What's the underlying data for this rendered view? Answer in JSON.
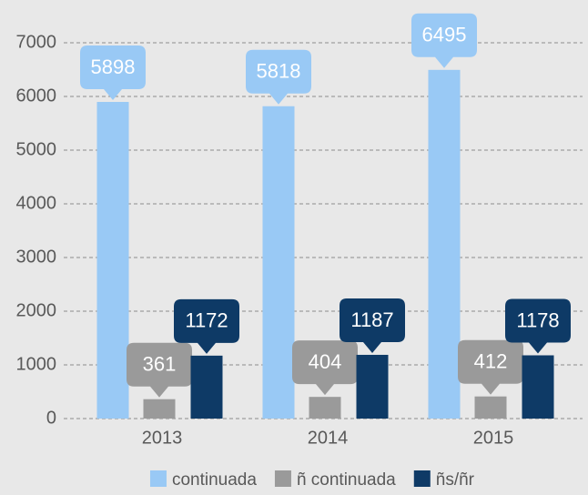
{
  "chart_data": {
    "type": "bar",
    "categories": [
      "2013",
      "2014",
      "2015"
    ],
    "series": [
      {
        "name": "continuada",
        "color": "#99c9f5",
        "values": [
          5898,
          5818,
          6495
        ]
      },
      {
        "name": "ñ continuada",
        "color": "#9a9a9a",
        "values": [
          361,
          404,
          412
        ]
      },
      {
        "name": "ñs/ñr",
        "color": "#0e3a66",
        "values": [
          1172,
          1187,
          1178
        ]
      }
    ],
    "ylim": [
      0,
      7000
    ],
    "yticks": [
      0,
      1000,
      2000,
      3000,
      4000,
      5000,
      6000,
      7000
    ],
    "grid": true,
    "legend": "bottom"
  }
}
